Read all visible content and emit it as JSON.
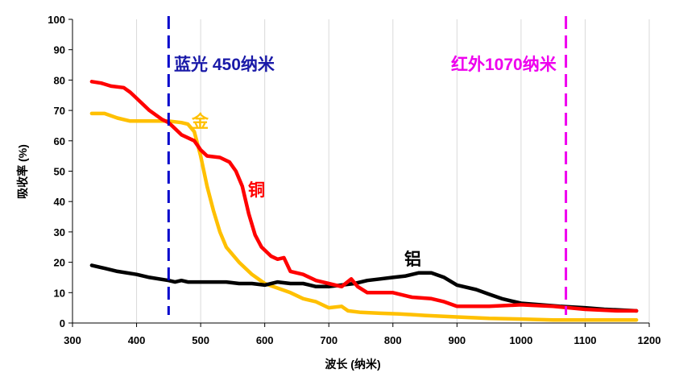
{
  "chart_data": {
    "type": "line",
    "xlabel": "波长 (纳米)",
    "ylabel": "吸收率 (%)",
    "xlim": [
      300,
      1200
    ],
    "ylim": [
      0,
      100
    ],
    "x_ticks": [
      300,
      400,
      500,
      600,
      700,
      800,
      900,
      1000,
      1100,
      1200
    ],
    "y_ticks": [
      0,
      10,
      20,
      30,
      40,
      50,
      60,
      70,
      80,
      90,
      100
    ],
    "grid": "vertical",
    "series": [
      {
        "name": "铜",
        "color": "#ff0000",
        "points": [
          [
            330,
            79.5
          ],
          [
            345,
            79
          ],
          [
            360,
            78
          ],
          [
            380,
            77.5
          ],
          [
            390,
            76
          ],
          [
            400,
            74
          ],
          [
            420,
            70
          ],
          [
            440,
            67
          ],
          [
            450,
            66
          ],
          [
            460,
            64
          ],
          [
            470,
            62
          ],
          [
            490,
            60
          ],
          [
            500,
            57
          ],
          [
            510,
            55
          ],
          [
            530,
            54.5
          ],
          [
            545,
            53
          ],
          [
            555,
            50
          ],
          [
            565,
            45
          ],
          [
            575,
            36
          ],
          [
            585,
            29
          ],
          [
            595,
            25
          ],
          [
            610,
            22
          ],
          [
            620,
            21
          ],
          [
            630,
            21.5
          ],
          [
            640,
            17
          ],
          [
            660,
            16
          ],
          [
            680,
            14
          ],
          [
            700,
            13
          ],
          [
            720,
            12
          ],
          [
            735,
            14.5
          ],
          [
            745,
            12
          ],
          [
            760,
            10
          ],
          [
            780,
            10
          ],
          [
            800,
            10
          ],
          [
            830,
            8.5
          ],
          [
            860,
            8
          ],
          [
            880,
            7
          ],
          [
            900,
            5.5
          ],
          [
            950,
            5.5
          ],
          [
            1000,
            6
          ],
          [
            1050,
            5.5
          ],
          [
            1100,
            4.5
          ],
          [
            1150,
            4
          ],
          [
            1180,
            4
          ]
        ]
      },
      {
        "name": "金",
        "color": "#ffc000",
        "points": [
          [
            330,
            69
          ],
          [
            350,
            69
          ],
          [
            370,
            67.5
          ],
          [
            390,
            66.5
          ],
          [
            420,
            66.5
          ],
          [
            450,
            66.5
          ],
          [
            470,
            66
          ],
          [
            480,
            65.5
          ],
          [
            490,
            63
          ],
          [
            500,
            55
          ],
          [
            510,
            45
          ],
          [
            520,
            37
          ],
          [
            530,
            30
          ],
          [
            540,
            25
          ],
          [
            560,
            20
          ],
          [
            580,
            16
          ],
          [
            600,
            13
          ],
          [
            620,
            11.5
          ],
          [
            640,
            10
          ],
          [
            660,
            8
          ],
          [
            680,
            7
          ],
          [
            700,
            5
          ],
          [
            720,
            5.5
          ],
          [
            730,
            4
          ],
          [
            750,
            3.5
          ],
          [
            780,
            3.2
          ],
          [
            810,
            3
          ],
          [
            850,
            2.5
          ],
          [
            900,
            2
          ],
          [
            950,
            1.5
          ],
          [
            1000,
            1.3
          ],
          [
            1050,
            1
          ],
          [
            1100,
            1
          ],
          [
            1180,
            1
          ]
        ]
      },
      {
        "name": "铝",
        "color": "#000000",
        "points": [
          [
            330,
            19
          ],
          [
            350,
            18
          ],
          [
            370,
            17
          ],
          [
            400,
            16
          ],
          [
            420,
            15
          ],
          [
            450,
            14
          ],
          [
            460,
            13.5
          ],
          [
            470,
            14
          ],
          [
            480,
            13.5
          ],
          [
            500,
            13.5
          ],
          [
            520,
            13.5
          ],
          [
            540,
            13.5
          ],
          [
            560,
            13
          ],
          [
            580,
            13
          ],
          [
            600,
            12.5
          ],
          [
            620,
            13.5
          ],
          [
            640,
            13
          ],
          [
            660,
            13
          ],
          [
            680,
            12
          ],
          [
            700,
            12
          ],
          [
            720,
            12.5
          ],
          [
            740,
            13
          ],
          [
            760,
            14
          ],
          [
            780,
            14.5
          ],
          [
            800,
            15
          ],
          [
            820,
            15.5
          ],
          [
            840,
            16.5
          ],
          [
            860,
            16.5
          ],
          [
            880,
            15
          ],
          [
            900,
            12.5
          ],
          [
            930,
            11
          ],
          [
            950,
            9.5
          ],
          [
            970,
            8
          ],
          [
            1000,
            6.5
          ],
          [
            1030,
            6
          ],
          [
            1060,
            5.5
          ],
          [
            1100,
            5
          ],
          [
            1130,
            4.5
          ],
          [
            1180,
            4
          ]
        ]
      }
    ],
    "reference_lines": [
      {
        "x": 450,
        "color": "#0000cc",
        "style": "dashed"
      },
      {
        "x": 1070,
        "color": "#ee00ee",
        "style": "dashed"
      }
    ],
    "annotations": [
      {
        "text": "蓝光 450纳米",
        "color": "#1a1aa8"
      },
      {
        "text": "红外1070纳米",
        "color": "#ee00ee"
      },
      {
        "text": "金",
        "color": "#ffc000"
      },
      {
        "text": "铜",
        "color": "#ff0000"
      },
      {
        "text": "铝",
        "color": "#000000"
      }
    ]
  }
}
